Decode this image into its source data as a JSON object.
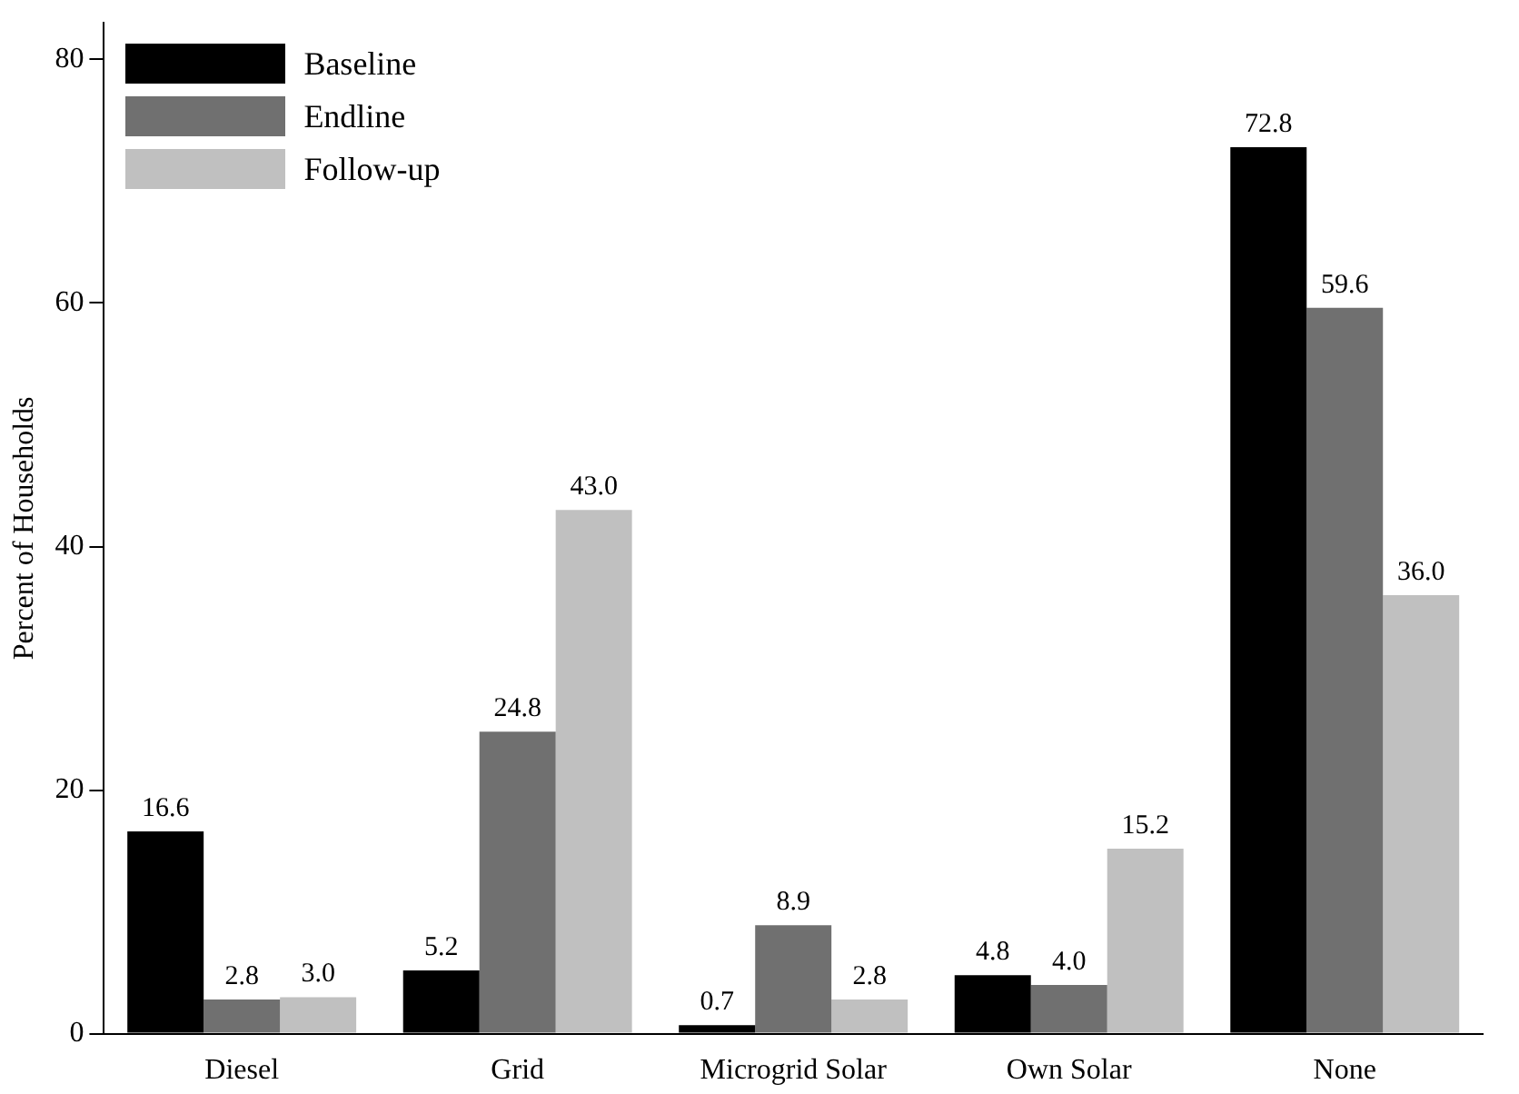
{
  "chart_data": {
    "type": "bar",
    "ylabel": "Percent of Households",
    "categories": [
      "Diesel",
      "Grid",
      "Microgrid Solar",
      "Own Solar",
      "None"
    ],
    "series": [
      {
        "name": "Baseline",
        "color": "#000000",
        "values": [
          16.6,
          5.2,
          0.7,
          4.8,
          72.8
        ],
        "value_labels": [
          "16.6",
          "5.2",
          "0.7",
          "4.8",
          "72.8"
        ]
      },
      {
        "name": "Endline",
        "color": "#707070",
        "values": [
          2.8,
          24.8,
          8.9,
          4.0,
          59.6
        ],
        "value_labels": [
          "2.8",
          "24.8",
          "8.9",
          "4.0",
          "59.6"
        ]
      },
      {
        "name": "Follow-up",
        "color": "#c0c0c0",
        "values": [
          3.0,
          43.0,
          2.8,
          15.2,
          36.0
        ],
        "value_labels": [
          "3.0",
          "43.0",
          "2.8",
          "15.2",
          "36.0"
        ]
      }
    ],
    "ylim": [
      0,
      83
    ],
    "yticks": [
      0,
      20,
      40,
      60,
      80
    ],
    "grid": false,
    "legend": "top left"
  }
}
